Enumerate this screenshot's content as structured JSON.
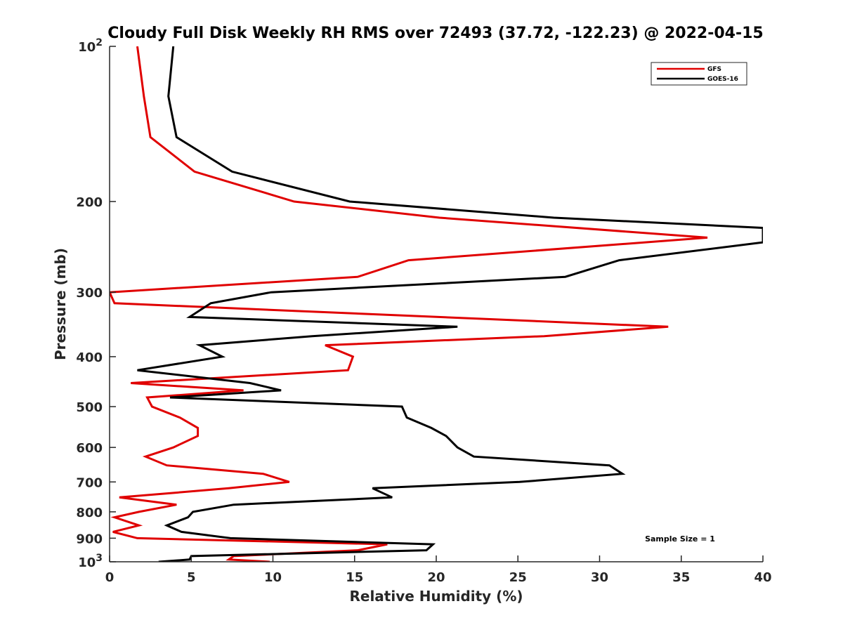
{
  "chart_data": {
    "type": "line",
    "title": "Cloudy Full Disk Weekly RH RMS over 72493 (37.72, -122.23) @ 2022-04-15",
    "xlabel": "Relative Humidity (%)",
    "ylabel": "Pressure (mb)",
    "xlim": [
      0,
      40
    ],
    "ylim": [
      100,
      1000
    ],
    "y_scale": "log",
    "y_reversed": true,
    "x_ticks": [
      "0",
      "5",
      "10",
      "15",
      "20",
      "25",
      "30",
      "35",
      "40"
    ],
    "y_ticks": [
      {
        "value": 100,
        "label": "10",
        "sup": "2"
      },
      {
        "value": 200,
        "label": "200",
        "sup": ""
      },
      {
        "value": 300,
        "label": "300",
        "sup": ""
      },
      {
        "value": 400,
        "label": "400",
        "sup": ""
      },
      {
        "value": 500,
        "label": "500",
        "sup": ""
      },
      {
        "value": 600,
        "label": "600",
        "sup": ""
      },
      {
        "value": 700,
        "label": "700",
        "sup": ""
      },
      {
        "value": 800,
        "label": "800",
        "sup": ""
      },
      {
        "value": 900,
        "label": "900",
        "sup": ""
      },
      {
        "value": 1000,
        "label": "10",
        "sup": "3"
      }
    ],
    "grid": false,
    "legend_position": "top-right",
    "series": [
      {
        "name": "GFS",
        "color": "#e00000",
        "points": [
          [
            1.7,
            100
          ],
          [
            2.1,
            125
          ],
          [
            2.5,
            150
          ],
          [
            5.2,
            175
          ],
          [
            11.3,
            200
          ],
          [
            20.2,
            215
          ],
          [
            36.6,
            235
          ],
          [
            18.3,
            260
          ],
          [
            15.2,
            280
          ],
          [
            0,
            300
          ],
          [
            0.3,
            315
          ],
          [
            34.2,
            350
          ],
          [
            26.6,
            365
          ],
          [
            13.2,
            380
          ],
          [
            14.9,
            400
          ],
          [
            14.6,
            425
          ],
          [
            1.3,
            450
          ],
          [
            8.2,
            465
          ],
          [
            2.3,
            480
          ],
          [
            2.6,
            500
          ],
          [
            4.3,
            525
          ],
          [
            5.4,
            550
          ],
          [
            5.4,
            570
          ],
          [
            3.9,
            600
          ],
          [
            2.2,
            625
          ],
          [
            3.5,
            650
          ],
          [
            9.4,
            675
          ],
          [
            11.0,
            700
          ],
          [
            7.3,
            720
          ],
          [
            0.6,
            750
          ],
          [
            4.1,
            775
          ],
          [
            1.8,
            800
          ],
          [
            0.3,
            820
          ],
          [
            1.8,
            850
          ],
          [
            0.2,
            875
          ],
          [
            1.7,
            900
          ],
          [
            17.0,
            925
          ],
          [
            15.2,
            950
          ],
          [
            7.6,
            975
          ],
          [
            7.3,
            990
          ],
          [
            9.8,
            1000
          ]
        ]
      },
      {
        "name": "GOES-16",
        "color": "#000000",
        "points": [
          [
            3.9,
            100
          ],
          [
            3.6,
            125
          ],
          [
            4.1,
            150
          ],
          [
            7.5,
            175
          ],
          [
            14.7,
            200
          ],
          [
            27.2,
            215
          ],
          [
            40.0,
            225
          ],
          [
            40.0,
            240
          ],
          [
            31.2,
            260
          ],
          [
            27.9,
            280
          ],
          [
            9.9,
            300
          ],
          [
            6.2,
            315
          ],
          [
            4.9,
            335
          ],
          [
            21.3,
            350
          ],
          [
            12.4,
            365
          ],
          [
            5.5,
            380
          ],
          [
            6.9,
            400
          ],
          [
            1.7,
            425
          ],
          [
            8.6,
            450
          ],
          [
            10.5,
            465
          ],
          [
            3.7,
            480
          ],
          [
            17.9,
            500
          ],
          [
            18.2,
            525
          ],
          [
            19.7,
            550
          ],
          [
            20.6,
            570
          ],
          [
            21.3,
            600
          ],
          [
            22.3,
            625
          ],
          [
            30.6,
            650
          ],
          [
            31.4,
            675
          ],
          [
            25.1,
            700
          ],
          [
            16.1,
            720
          ],
          [
            17.3,
            750
          ],
          [
            7.6,
            775
          ],
          [
            5.1,
            800
          ],
          [
            4.8,
            820
          ],
          [
            3.5,
            850
          ],
          [
            4.4,
            875
          ],
          [
            7.4,
            900
          ],
          [
            19.8,
            925
          ],
          [
            19.4,
            950
          ],
          [
            5.0,
            975
          ],
          [
            4.9,
            990
          ],
          [
            3.0,
            1000
          ]
        ]
      }
    ],
    "annotation": "Sample Size = 1"
  }
}
